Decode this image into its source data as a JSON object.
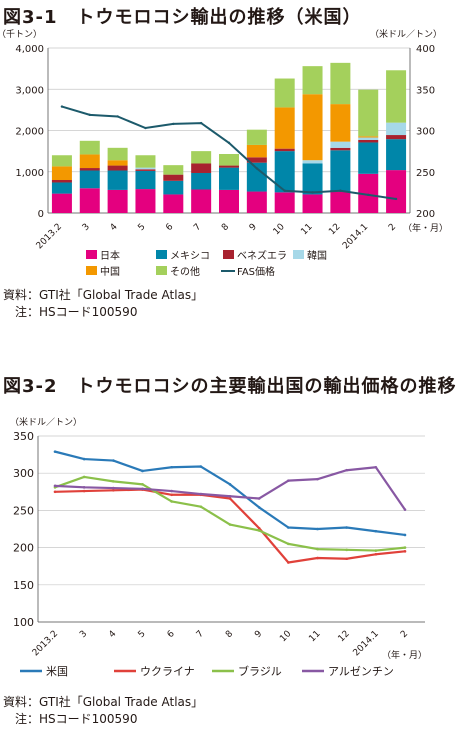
{
  "figure1": {
    "title": "図3-1　トウモロコシ輸出の推移（米国）",
    "source": "資料：GTI社「Global Trade Atlas」",
    "note": "　注：HSコード100590",
    "chart_data": {
      "type": "bar",
      "stacked": true,
      "title": "図3-1　トウモロコシ輸出の推移（米国）",
      "ylabel_left": "（千トン）",
      "ylabel_right": "（米ドル／トン）",
      "xlabel": "（年・月）",
      "categories": [
        "2013.2",
        "3",
        "4",
        "5",
        "6",
        "7",
        "8",
        "9",
        "10",
        "11",
        "12",
        "2014.1",
        "2"
      ],
      "ylim_left": [
        0,
        4000
      ],
      "yticks_left": [
        "0",
        "1,000",
        "2,000",
        "3,000",
        "4,000"
      ],
      "ylim_right": [
        200,
        400
      ],
      "yticks_right": [
        "200",
        "250",
        "300",
        "350",
        "400"
      ],
      "series": [
        {
          "name": "日本",
          "color": "#e4007f",
          "values": [
            470,
            600,
            560,
            580,
            450,
            570,
            560,
            520,
            500,
            450,
            520,
            950,
            1040
          ]
        },
        {
          "name": "メキシコ",
          "color": "#0086a9",
          "values": [
            270,
            430,
            470,
            440,
            330,
            400,
            540,
            700,
            1000,
            750,
            1000,
            760,
            750
          ]
        },
        {
          "name": "ベネズエラ",
          "color": "#a8222f",
          "values": [
            60,
            60,
            120,
            40,
            150,
            230,
            50,
            130,
            60,
            0,
            60,
            60,
            100
          ]
        },
        {
          "name": "韓国",
          "color": "#a6d8e8",
          "values": [
            0,
            0,
            0,
            40,
            0,
            0,
            0,
            0,
            0,
            80,
            150,
            60,
            300
          ]
        },
        {
          "name": "中国",
          "color": "#f39800",
          "values": [
            330,
            330,
            130,
            0,
            0,
            0,
            0,
            300,
            1000,
            1600,
            910,
            30,
            0
          ]
        },
        {
          "name": "その他",
          "color": "#a4d05c",
          "values": [
            270,
            330,
            300,
            300,
            230,
            300,
            280,
            370,
            700,
            680,
            1000,
            1130,
            1270
          ]
        }
      ],
      "line": {
        "name": "FAS価格",
        "color": "#1c5a6b",
        "axis": "right",
        "values": [
          329,
          319,
          317,
          303,
          308,
          309,
          285,
          254,
          227,
          225,
          227,
          222,
          217
        ]
      }
    }
  },
  "figure2": {
    "title": "図3-2　トウモロコシの主要輸出国の輸出価格の推移",
    "source": "資料：GTI社「Global Trade Atlas」",
    "note": "　注：HSコード100590",
    "chart_data": {
      "type": "line",
      "title": "図3-2　トウモロコシの主要輸出国の輸出価格の推移",
      "ylabel": "（米ドル／トン）",
      "xlabel": "（年・月）",
      "categories": [
        "2013.2",
        "3",
        "4",
        "5",
        "6",
        "7",
        "8",
        "9",
        "10",
        "11",
        "12",
        "2014.1",
        "2"
      ],
      "ylim": [
        100,
        350
      ],
      "yticks": [
        "100",
        "150",
        "200",
        "250",
        "300",
        "350"
      ],
      "series": [
        {
          "name": "米国",
          "color": "#2a7ab8",
          "values": [
            329,
            319,
            317,
            303,
            308,
            309,
            285,
            254,
            227,
            225,
            227,
            222,
            217
          ]
        },
        {
          "name": "ウクライナ",
          "color": "#e0413a",
          "values": [
            275,
            276,
            277,
            278,
            271,
            271,
            266,
            226,
            180,
            186,
            185,
            191,
            195
          ]
        },
        {
          "name": "ブラジル",
          "color": "#8bc04a",
          "values": [
            281,
            295,
            289,
            285,
            262,
            255,
            231,
            223,
            205,
            198,
            197,
            196,
            200
          ]
        },
        {
          "name": "アルゼンチン",
          "color": "#8858a3",
          "values": [
            283,
            281,
            280,
            279,
            276,
            272,
            269,
            266,
            290,
            292,
            304,
            308,
            251
          ]
        }
      ]
    }
  }
}
